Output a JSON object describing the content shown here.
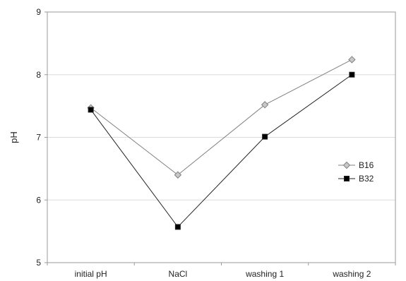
{
  "chart_data": {
    "type": "line",
    "title": "",
    "xlabel": "",
    "ylabel": "pH",
    "ylim": [
      5,
      9
    ],
    "yticks": [
      5,
      6,
      7,
      8,
      9
    ],
    "grid": "horizontal",
    "categories": [
      "initial pH",
      "NaCl",
      "washing 1",
      "washing 2"
    ],
    "series": [
      {
        "name": "B16",
        "values": [
          7.47,
          6.4,
          7.52,
          8.24
        ],
        "color": "#808080",
        "marker": "diamond",
        "marker_fill": "#c8c8c8"
      },
      {
        "name": "B32",
        "values": [
          7.44,
          5.57,
          7.01,
          8.0
        ],
        "color": "#222222",
        "marker": "square",
        "marker_fill": "#000000"
      }
    ],
    "legend_position": "right"
  }
}
